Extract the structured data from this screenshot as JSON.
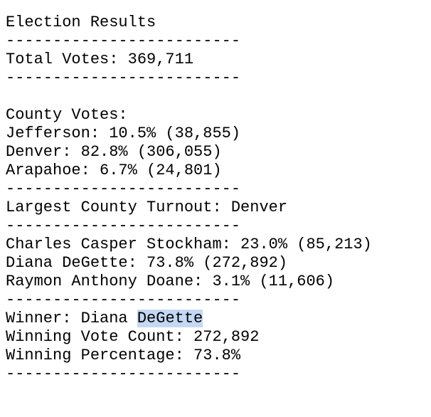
{
  "title": "Election Results",
  "rule": "-------------------------",
  "total_votes": "Total Votes: 369,711",
  "county_heading": "County Votes:",
  "counties": [
    "Jefferson: 10.5% (38,855)",
    "Denver: 82.8% (306,055)",
    "Arapahoe: 6.7% (24,801)"
  ],
  "largest_county": "Largest County Turnout: Denver",
  "candidates": [
    "Charles Casper Stockham: 23.0% (85,213)",
    "Diana DeGette: 73.8% (272,892)",
    "Raymon Anthony Doane: 3.1% (11,606)"
  ],
  "winner": {
    "prefix": "Winner: Diana ",
    "selected": "DeGette"
  },
  "winning_count": "Winning Vote Count: 272,892",
  "winning_percentage": "Winning Percentage: 73.8%"
}
